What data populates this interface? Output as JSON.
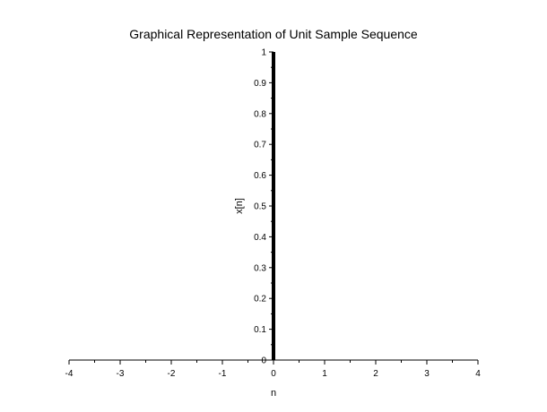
{
  "chart_data": {
    "type": "bar",
    "title": "Graphical Representation of Unit Sample Sequence",
    "xlabel": "n",
    "ylabel": "x[n]",
    "xlim": [
      -4,
      4
    ],
    "ylim": [
      0,
      1
    ],
    "grid": false,
    "x_ticks": [
      -4,
      -3,
      -2,
      -1,
      0,
      1,
      2,
      3,
      4
    ],
    "x_tick_labels": [
      "-4",
      "-3",
      "-2",
      "-1",
      "0",
      "1",
      "2",
      "3",
      "4"
    ],
    "y_ticks": [
      0,
      0.1,
      0.2,
      0.3,
      0.4,
      0.5,
      0.6,
      0.7,
      0.8,
      0.9,
      1
    ],
    "y_tick_labels": [
      "0",
      "0.1",
      "0.2",
      "0.3",
      "0.4",
      "0.5",
      "0.6",
      "0.7",
      "0.8",
      "0.9",
      "1"
    ],
    "x": [
      0
    ],
    "values": [
      1
    ],
    "colors": {
      "axis": "#000000",
      "bar": "#000000"
    }
  }
}
